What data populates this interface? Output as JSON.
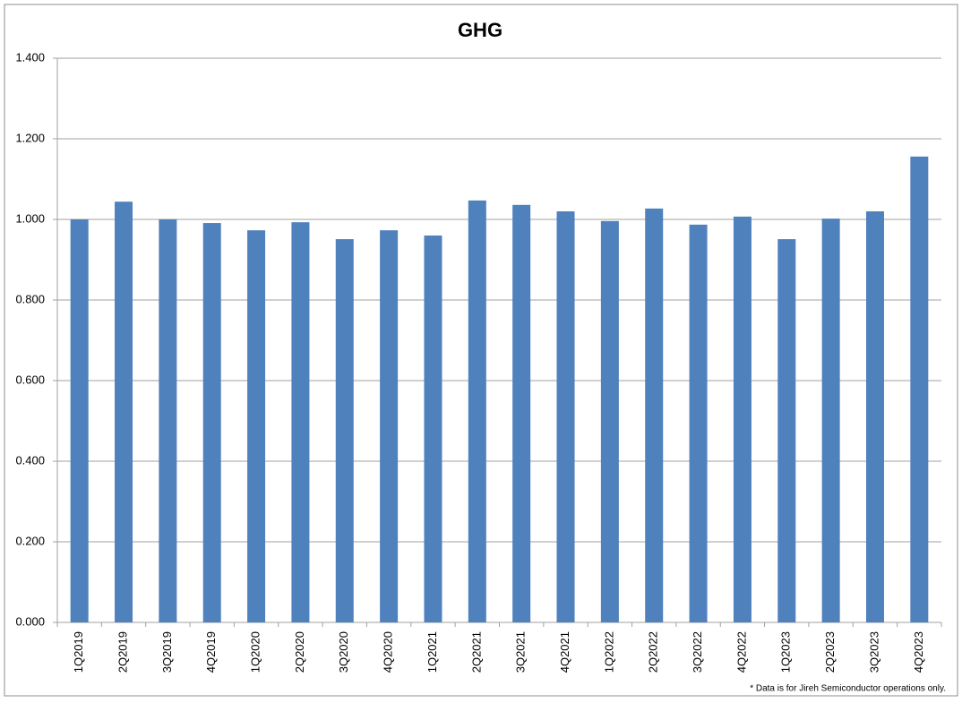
{
  "chart_data": {
    "type": "bar",
    "title": "GHG",
    "categories": [
      "1Q2019",
      "2Q2019",
      "3Q2019",
      "4Q2019",
      "1Q2020",
      "2Q2020",
      "3Q2020",
      "4Q2020",
      "1Q2021",
      "2Q2021",
      "3Q2021",
      "4Q2021",
      "1Q2022",
      "2Q2022",
      "3Q2022",
      "4Q2022",
      "1Q2023",
      "2Q2023",
      "3Q2023",
      "4Q2023"
    ],
    "values": [
      1.0,
      1.044,
      1.0,
      0.991,
      0.973,
      0.993,
      0.951,
      0.973,
      0.96,
      1.047,
      1.036,
      1.02,
      0.996,
      1.027,
      0.987,
      1.007,
      0.951,
      1.002,
      1.02,
      1.156
    ],
    "color": "#4f81bd",
    "ylim": [
      0,
      1.4
    ],
    "yticks": [
      {
        "value": 0,
        "label": "0.000"
      },
      {
        "value": 0.2,
        "label": "0.200"
      },
      {
        "value": 0.4,
        "label": "0.400"
      },
      {
        "value": 0.6,
        "label": "0.600"
      },
      {
        "value": 0.8,
        "label": "0.800"
      },
      {
        "value": 1.0,
        "label": "1.000"
      },
      {
        "value": 1.2,
        "label": "1.200"
      },
      {
        "value": 1.4,
        "label": "1.400"
      }
    ],
    "grid": true,
    "footnote": "* Data is for Jireh Semiconductor operations only."
  }
}
